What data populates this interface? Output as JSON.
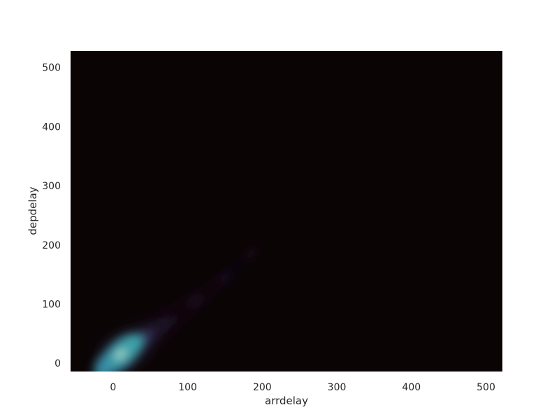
{
  "chart_data": {
    "type": "heatmap",
    "kind": "2d kernel density estimate",
    "title": "",
    "xlabel": "arrdelay",
    "ylabel": "depdelay",
    "xlim": [
      -57,
      522
    ],
    "ylim": [
      -14,
      528
    ],
    "xticks": [
      0,
      100,
      200,
      300,
      400,
      500
    ],
    "yticks": [
      0,
      100,
      200,
      300,
      400,
      500
    ],
    "grid": false,
    "legend": "none",
    "colormap": "mako",
    "background_color": "#0b0405",
    "density_peak": {
      "arrdelay": 10,
      "depdelay": 15
    },
    "density_ridge": [
      {
        "arrdelay": 0,
        "depdelay": 5,
        "density": 0.85
      },
      {
        "arrdelay": 10,
        "depdelay": 15,
        "density": 1.0
      },
      {
        "arrdelay": 25,
        "depdelay": 28,
        "density": 0.55
      },
      {
        "arrdelay": 45,
        "depdelay": 45,
        "density": 0.28
      },
      {
        "arrdelay": 70,
        "depdelay": 68,
        "density": 0.12
      },
      {
        "arrdelay": 110,
        "depdelay": 105,
        "density": 0.06
      },
      {
        "arrdelay": 150,
        "depdelay": 145,
        "density": 0.03
      },
      {
        "arrdelay": 185,
        "depdelay": 185,
        "density": 0.015
      }
    ]
  }
}
